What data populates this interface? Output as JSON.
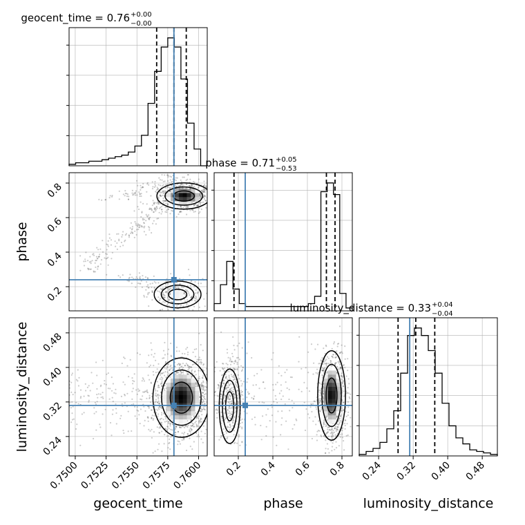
{
  "chart_data": {
    "type": "corner",
    "colors": {
      "truth": "#4682b4",
      "hist": "#000000",
      "grid": "#b0b0b0",
      "samples": "#444444"
    },
    "parameters": [
      {
        "key": "geocent_time",
        "label": "geocent_time",
        "title_main": "geocent_time = 0.76",
        "title_plus": "+0.00",
        "title_minus": "−0.00",
        "range": [
          0.7495,
          0.7607
        ],
        "ticks": [
          0.75,
          0.7525,
          0.755,
          0.7575,
          0.76
        ],
        "tick_labels": [
          "0.7500",
          "0.7525",
          "0.7550",
          "0.7575",
          "0.7600"
        ],
        "truth": 0.758,
        "quantiles": [
          0.7566,
          0.758,
          0.759
        ],
        "hist": [
          1,
          2,
          2,
          3,
          3,
          4,
          5,
          6,
          7,
          9,
          13,
          20,
          41,
          62,
          78,
          84,
          78,
          57,
          28,
          11,
          0
        ]
      },
      {
        "key": "phase",
        "label": "phase",
        "title_main": "phase = 0.71",
        "title_plus": "+0.05",
        "title_minus": "−0.53",
        "range": [
          0.06,
          0.86
        ],
        "ticks": [
          0.2,
          0.4,
          0.6,
          0.8
        ],
        "tick_labels": [
          "0.2",
          "0.4",
          "0.6",
          "0.8"
        ],
        "truth": 0.24,
        "quantiles": [
          0.175,
          0.71,
          0.76
        ],
        "hist": [
          5,
          18,
          34,
          15,
          5,
          3,
          3,
          3,
          3,
          3,
          3,
          3,
          3,
          3,
          3,
          5,
          10,
          82,
          88,
          80,
          12,
          2
        ]
      },
      {
        "key": "luminosity_distance",
        "label": "luminosity_distance",
        "title_main": "luminosity_distance = 0.33",
        "title_plus": "+0.04",
        "title_minus": "−0.04",
        "range": [
          0.195,
          0.515
        ],
        "ticks": [
          0.24,
          0.32,
          0.4,
          0.48
        ],
        "tick_labels": [
          "0.24",
          "0.32",
          "0.40",
          "0.48"
        ],
        "truth": 0.312,
        "quantiles": [
          0.285,
          0.326,
          0.37
        ],
        "hist": [
          1,
          3,
          5,
          9,
          18,
          30,
          55,
          80,
          85,
          80,
          70,
          55,
          35,
          20,
          12,
          8,
          4,
          3,
          2,
          1
        ]
      }
    ]
  }
}
